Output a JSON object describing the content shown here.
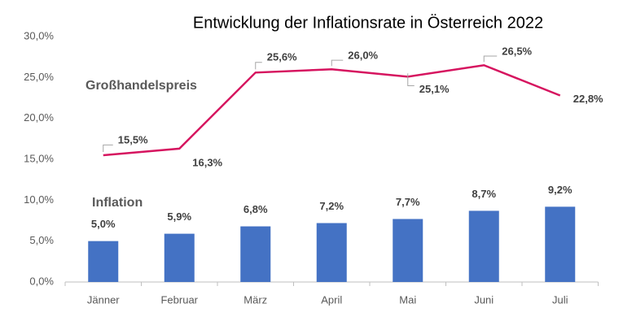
{
  "chart_data": {
    "type": "combo",
    "title": "Entwicklung der Inflationsrate in Österreich 2022",
    "categories": [
      "Jänner",
      "Februar",
      "März",
      "April",
      "Mai",
      "Juni",
      "Juli"
    ],
    "series": [
      {
        "name": "Inflation",
        "type": "bar",
        "color": "#4472c4",
        "values": [
          5.0,
          5.9,
          6.8,
          7.2,
          7.7,
          8.7,
          9.2
        ],
        "value_labels": [
          "5,0%",
          "5,9%",
          "6,8%",
          "7,2%",
          "7,7%",
          "8,7%",
          "9,2%"
        ]
      },
      {
        "name": "Großhandelspreis",
        "type": "line",
        "color": "#d6145f",
        "values": [
          15.5,
          16.3,
          25.6,
          26.0,
          25.1,
          26.5,
          22.8
        ],
        "value_labels": [
          "15,5%",
          "16,3%",
          "25,6%",
          "26,0%",
          "25,1%",
          "26,5%",
          "22,8%"
        ]
      }
    ],
    "ylim": [
      0,
      30
    ],
    "yticks": [
      {
        "value": 0,
        "label": "0,0%"
      },
      {
        "value": 5,
        "label": "5,0%"
      },
      {
        "value": 10,
        "label": "10,0%"
      },
      {
        "value": 15,
        "label": "15,0%"
      },
      {
        "value": 20,
        "label": "20,0%"
      },
      {
        "value": 25,
        "label": "25,0%"
      },
      {
        "value": 30,
        "label": "30,0%"
      }
    ],
    "grid": false
  }
}
